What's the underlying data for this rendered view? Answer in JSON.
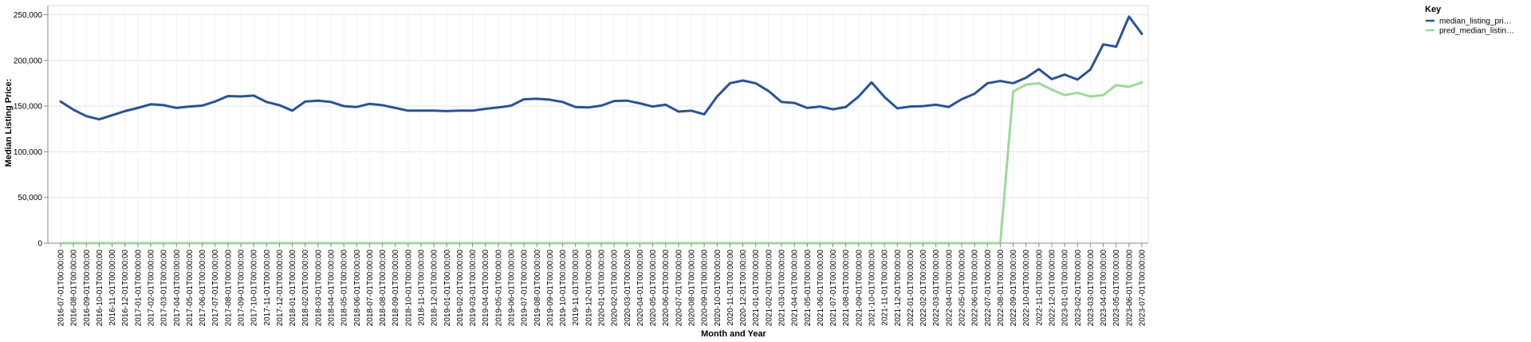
{
  "chart_data": {
    "type": "line",
    "title": "",
    "xlabel": "Month and Year",
    "ylabel": "Median Listing Price:",
    "ylim": [
      0,
      260000
    ],
    "yticks": [
      0,
      50000,
      100000,
      150000,
      200000,
      250000
    ],
    "ytick_labels": [
      "0",
      "50,000",
      "100,000",
      "150,000",
      "200,000",
      "250,000"
    ],
    "grid": true,
    "legend": {
      "title": "Key",
      "position": "right"
    },
    "x": [
      "2016-07-01T00:00:00",
      "2016-08-01T00:00:00",
      "2016-09-01T00:00:00",
      "2016-10-01T00:00:00",
      "2016-11-01T00:00:00",
      "2016-12-01T00:00:00",
      "2017-01-01T00:00:00",
      "2017-02-01T00:00:00",
      "2017-03-01T00:00:00",
      "2017-04-01T00:00:00",
      "2017-05-01T00:00:00",
      "2017-06-01T00:00:00",
      "2017-07-01T00:00:00",
      "2017-08-01T00:00:00",
      "2017-09-01T00:00:00",
      "2017-10-01T00:00:00",
      "2017-11-01T00:00:00",
      "2017-12-01T00:00:00",
      "2018-01-01T00:00:00",
      "2018-02-01T00:00:00",
      "2018-03-01T00:00:00",
      "2018-04-01T00:00:00",
      "2018-05-01T00:00:00",
      "2018-06-01T00:00:00",
      "2018-07-01T00:00:00",
      "2018-08-01T00:00:00",
      "2018-09-01T00:00:00",
      "2018-10-01T00:00:00",
      "2018-11-01T00:00:00",
      "2018-12-01T00:00:00",
      "2019-01-01T00:00:00",
      "2019-02-01T00:00:00",
      "2019-03-01T00:00:00",
      "2019-04-01T00:00:00",
      "2019-05-01T00:00:00",
      "2019-06-01T00:00:00",
      "2019-07-01T00:00:00",
      "2019-08-01T00:00:00",
      "2019-09-01T00:00:00",
      "2019-10-01T00:00:00",
      "2019-11-01T00:00:00",
      "2019-12-01T00:00:00",
      "2020-01-01T00:00:00",
      "2020-02-01T00:00:00",
      "2020-03-01T00:00:00",
      "2020-04-01T00:00:00",
      "2020-05-01T00:00:00",
      "2020-06-01T00:00:00",
      "2020-07-01T00:00:00",
      "2020-08-01T00:00:00",
      "2020-09-01T00:00:00",
      "2020-10-01T00:00:00",
      "2020-11-01T00:00:00",
      "2020-12-01T00:00:00",
      "2021-01-01T00:00:00",
      "2021-02-01T00:00:00",
      "2021-03-01T00:00:00",
      "2021-04-01T00:00:00",
      "2021-05-01T00:00:00",
      "2021-06-01T00:00:00",
      "2021-07-01T00:00:00",
      "2021-08-01T00:00:00",
      "2021-09-01T00:00:00",
      "2021-10-01T00:00:00",
      "2021-11-01T00:00:00",
      "2021-12-01T00:00:00",
      "2022-01-01T00:00:00",
      "2022-02-01T00:00:00",
      "2022-03-01T00:00:00",
      "2022-04-01T00:00:00",
      "2022-05-01T00:00:00",
      "2022-06-01T00:00:00",
      "2022-07-01T00:00:00",
      "2022-08-01T00:00:00",
      "2022-09-01T00:00:00",
      "2022-10-01T00:00:00",
      "2022-11-01T00:00:00",
      "2022-12-01T00:00:00",
      "2023-01-01T00:00:00",
      "2023-02-01T00:00:00",
      "2023-03-01T00:00:00",
      "2023-04-01T00:00:00",
      "2023-05-01T00:00:00",
      "2023-06-01T00:00:00",
      "2023-07-01T00:00:00"
    ],
    "series": [
      {
        "name": "median_listing_pri…",
        "color": "#2a5298",
        "values": [
          155000,
          146000,
          139000,
          135500,
          140000,
          144500,
          148000,
          152000,
          151000,
          148000,
          149500,
          150500,
          155000,
          161000,
          160500,
          161500,
          154500,
          151000,
          145000,
          155000,
          156000,
          154500,
          150000,
          149000,
          152500,
          151000,
          148000,
          145000,
          145000,
          145000,
          144500,
          145000,
          145000,
          147000,
          148500,
          150500,
          157500,
          158000,
          157000,
          154500,
          149000,
          148500,
          150500,
          155500,
          156000,
          153000,
          149500,
          151500,
          144000,
          145000,
          141000,
          160500,
          175000,
          178000,
          175000,
          166500,
          154500,
          153500,
          148000,
          149500,
          146500,
          149000,
          160500,
          176000,
          160000,
          147500,
          149500,
          150000,
          151500,
          149000,
          157500,
          163500,
          175000,
          177500,
          175000,
          181000,
          190500,
          179500,
          184500,
          179000,
          190000,
          217500,
          215000,
          248000,
          229000
        ]
      },
      {
        "name": "pred_median_listin…",
        "color": "#9ed89a",
        "values": [
          0,
          0,
          0,
          0,
          0,
          0,
          0,
          0,
          0,
          0,
          0,
          0,
          0,
          0,
          0,
          0,
          0,
          0,
          0,
          0,
          0,
          0,
          0,
          0,
          0,
          0,
          0,
          0,
          0,
          0,
          0,
          0,
          0,
          0,
          0,
          0,
          0,
          0,
          0,
          0,
          0,
          0,
          0,
          0,
          0,
          0,
          0,
          0,
          0,
          0,
          0,
          0,
          0,
          0,
          0,
          0,
          0,
          0,
          0,
          0,
          0,
          0,
          0,
          0,
          0,
          0,
          0,
          0,
          0,
          0,
          0,
          0,
          0,
          0,
          166000,
          173500,
          175000,
          168000,
          162000,
          164500,
          160500,
          162000,
          173000,
          171000,
          176000
        ]
      }
    ]
  }
}
